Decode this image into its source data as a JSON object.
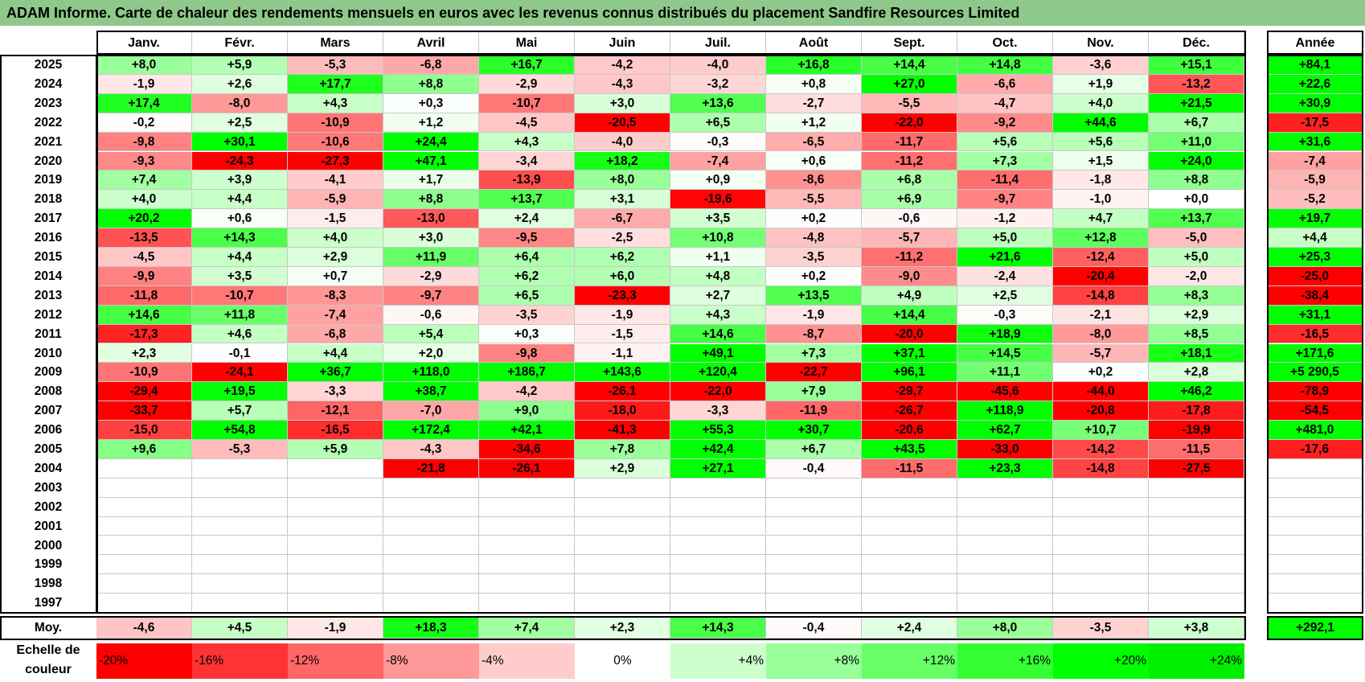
{
  "title": "ADAM Informe. Carte de chaleur des rendements mensuels en euros avec les revenus connus distribués du placement Sandfire Resources Limited",
  "chart_data": {
    "type": "heatmap",
    "months": [
      "Janv.",
      "Févr.",
      "Mars",
      "Avril",
      "Mai",
      "Juin",
      "Juil.",
      "Août",
      "Sept.",
      "Oct.",
      "Nov.",
      "Déc."
    ],
    "annual_label": "Année",
    "rows": [
      {
        "year": "2025",
        "values": [
          "+8,0",
          "+5,9",
          "-5,3",
          "-6,8",
          "+16,7",
          "-4,2",
          "-4,0",
          "+16,8",
          "+14,4",
          "+14,8",
          "-3,6",
          "+15,1"
        ],
        "annual": "+84,1"
      },
      {
        "year": "2024",
        "values": [
          "-1,9",
          "+2,6",
          "+17,7",
          "+8,8",
          "-2,9",
          "-4,3",
          "-3,2",
          "+0,8",
          "+27,0",
          "-6,6",
          "+1,9",
          "-13,2"
        ],
        "annual": "+22,6"
      },
      {
        "year": "2023",
        "values": [
          "+17,4",
          "-8,0",
          "+4,3",
          "+0,3",
          "-10,7",
          "+3,0",
          "+13,6",
          "-2,7",
          "-5,5",
          "-4,7",
          "+4,0",
          "+21,5"
        ],
        "annual": "+30,9"
      },
      {
        "year": "2022",
        "values": [
          "-0,2",
          "+2,5",
          "-10,9",
          "+1,2",
          "-4,5",
          "-20,5",
          "+6,5",
          "+1,2",
          "-22,0",
          "-9,2",
          "+44,6",
          "+6,7"
        ],
        "annual": "-17,5"
      },
      {
        "year": "2021",
        "values": [
          "-9,8",
          "+30,1",
          "-10,6",
          "+24,4",
          "+4,3",
          "-4,0",
          "-0,3",
          "-6,5",
          "-11,7",
          "+5,6",
          "+5,6",
          "+11,0"
        ],
        "annual": "+31,6"
      },
      {
        "year": "2020",
        "values": [
          "-9,3",
          "-24,3",
          "-27,3",
          "+47,1",
          "-3,4",
          "+18,2",
          "-7,4",
          "+0,6",
          "-11,2",
          "+7,3",
          "+1,5",
          "+24,0"
        ],
        "annual": "-7,4"
      },
      {
        "year": "2019",
        "values": [
          "+7,4",
          "+3,9",
          "-4,1",
          "+1,7",
          "-13,9",
          "+8,0",
          "+0,9",
          "-8,6",
          "+6,8",
          "-11,4",
          "-1,8",
          "+8,8"
        ],
        "annual": "-5,9"
      },
      {
        "year": "2018",
        "values": [
          "+4,0",
          "+4,4",
          "-5,9",
          "+8,8",
          "+13,7",
          "+3,1",
          "-19,6",
          "-5,5",
          "+6,9",
          "-9,7",
          "-1,0",
          "+0,0"
        ],
        "annual": "-5,2"
      },
      {
        "year": "2017",
        "values": [
          "+20,2",
          "+0,6",
          "-1,5",
          "-13,0",
          "+2,4",
          "-6,7",
          "+3,5",
          "+0,2",
          "-0,6",
          "-1,2",
          "+4,7",
          "+13,7"
        ],
        "annual": "+19,7"
      },
      {
        "year": "2016",
        "values": [
          "-13,5",
          "+14,3",
          "+4,0",
          "+3,0",
          "-9,5",
          "-2,5",
          "+10,8",
          "-4,8",
          "-5,7",
          "+5,0",
          "+12,8",
          "-5,0"
        ],
        "annual": "+4,4"
      },
      {
        "year": "2015",
        "values": [
          "-4,5",
          "+4,4",
          "+2,9",
          "+11,9",
          "+6,4",
          "+6,2",
          "+1,1",
          "-3,5",
          "-11,2",
          "+21,6",
          "-12,4",
          "+5,0"
        ],
        "annual": "+25,3"
      },
      {
        "year": "2014",
        "values": [
          "-9,9",
          "+3,5",
          "+0,7",
          "-2,9",
          "+6,2",
          "+6,0",
          "+4,8",
          "+0,2",
          "-9,0",
          "-2,4",
          "-20,4",
          "-2,0"
        ],
        "annual": "-25,0"
      },
      {
        "year": "2013",
        "values": [
          "-11,8",
          "-10,7",
          "-8,3",
          "-9,7",
          "+6,5",
          "-23,3",
          "+2,7",
          "+13,5",
          "+4,9",
          "+2,5",
          "-14,8",
          "+8,3"
        ],
        "annual": "-38,4"
      },
      {
        "year": "2012",
        "values": [
          "+14,6",
          "+11,8",
          "-7,4",
          "-0,6",
          "-3,5",
          "-1,9",
          "+4,3",
          "-1,9",
          "+14,4",
          "-0,3",
          "-2,1",
          "+2,9"
        ],
        "annual": "+31,1"
      },
      {
        "year": "2011",
        "values": [
          "-17,3",
          "+4,6",
          "-6,8",
          "+5,4",
          "+0,3",
          "-1,5",
          "+14,6",
          "-8,7",
          "-20,0",
          "+18,9",
          "-8,0",
          "+8,5"
        ],
        "annual": "-16,5"
      },
      {
        "year": "2010",
        "values": [
          "+2,3",
          "-0,1",
          "+4,4",
          "+2,0",
          "-9,8",
          "-1,1",
          "+49,1",
          "+7,3",
          "+37,1",
          "+14,5",
          "-5,7",
          "+18,1"
        ],
        "annual": "+171,6"
      },
      {
        "year": "2009",
        "values": [
          "-10,9",
          "-24,1",
          "+36,7",
          "+118,0",
          "+186,7",
          "+143,6",
          "+120,4",
          "-22,7",
          "+96,1",
          "+11,1",
          "+0,2",
          "+2,8"
        ],
        "annual": "+5 290,5"
      },
      {
        "year": "2008",
        "values": [
          "-29,4",
          "+19,5",
          "-3,3",
          "+38,7",
          "-4,2",
          "-26,1",
          "-22,0",
          "+7,9",
          "-29,7",
          "-45,6",
          "-44,0",
          "+46,2"
        ],
        "annual": "-78,9"
      },
      {
        "year": "2007",
        "values": [
          "-33,7",
          "+5,7",
          "-12,1",
          "-7,0",
          "+9,0",
          "-18,0",
          "-3,3",
          "-11,9",
          "-26,7",
          "+118,9",
          "-20,8",
          "-17,8"
        ],
        "annual": "-54,5"
      },
      {
        "year": "2006",
        "values": [
          "-15,0",
          "+54,8",
          "-16,5",
          "+172,4",
          "+42,1",
          "-41,3",
          "+55,3",
          "+30,7",
          "-20,6",
          "+62,7",
          "+10,7",
          "-19,9"
        ],
        "annual": "+481,0"
      },
      {
        "year": "2005",
        "values": [
          "+9,6",
          "-5,3",
          "+5,9",
          "-4,3",
          "-34,6",
          "+7,8",
          "+42,4",
          "+6,7",
          "+43,5",
          "-33,0",
          "-14,2",
          "-11,5"
        ],
        "annual": "-17,6"
      },
      {
        "year": "2004",
        "values": [
          "",
          "",
          "",
          "-21,8",
          "-26,1",
          "+2,9",
          "+27,1",
          "-0,4",
          "-11,5",
          "+23,3",
          "-14,8",
          "-27,5"
        ],
        "annual": ""
      },
      {
        "year": "2003",
        "values": [
          "",
          "",
          "",
          "",
          "",
          "",
          "",
          "",
          "",
          "",
          "",
          ""
        ],
        "annual": ""
      },
      {
        "year": "2002",
        "values": [
          "",
          "",
          "",
          "",
          "",
          "",
          "",
          "",
          "",
          "",
          "",
          ""
        ],
        "annual": ""
      },
      {
        "year": "2001",
        "values": [
          "",
          "",
          "",
          "",
          "",
          "",
          "",
          "",
          "",
          "",
          "",
          ""
        ],
        "annual": ""
      },
      {
        "year": "2000",
        "values": [
          "",
          "",
          "",
          "",
          "",
          "",
          "",
          "",
          "",
          "",
          "",
          ""
        ],
        "annual": ""
      },
      {
        "year": "1999",
        "values": [
          "",
          "",
          "",
          "",
          "",
          "",
          "",
          "",
          "",
          "",
          "",
          ""
        ],
        "annual": ""
      },
      {
        "year": "1998",
        "values": [
          "",
          "",
          "",
          "",
          "",
          "",
          "",
          "",
          "",
          "",
          "",
          ""
        ],
        "annual": ""
      },
      {
        "year": "1997",
        "values": [
          "",
          "",
          "",
          "",
          "",
          "",
          "",
          "",
          "",
          "",
          "",
          ""
        ],
        "annual": ""
      }
    ],
    "average": {
      "label": "Moy.",
      "values": [
        "-4,6",
        "+4,5",
        "-1,9",
        "+18,3",
        "+7,4",
        "+2,3",
        "+14,3",
        "-0,4",
        "+2,4",
        "+8,0",
        "-3,5",
        "+3,8"
      ],
      "annual": "+292,1"
    },
    "color_scale": {
      "label": "Echelle de couleur",
      "steps": [
        "-20%",
        "-16%",
        "-12%",
        "-8%",
        "-4%",
        "0%",
        "+4%",
        "+8%",
        "+12%",
        "+16%",
        "+20%",
        "+24%"
      ],
      "colors": [
        "#ff0000",
        "#ff3333",
        "#ff6666",
        "#ff9999",
        "#ffcccc",
        "#ffffff",
        "#ccffcc",
        "#99ff99",
        "#66ff66",
        "#33ff33",
        "#00ff00",
        "#00ee00"
      ]
    },
    "colors": {
      "negative_max": "#ff0000",
      "neutral": "#ffffff",
      "positive_max": "#00ff00",
      "title_bar": "#8ec88a"
    }
  }
}
